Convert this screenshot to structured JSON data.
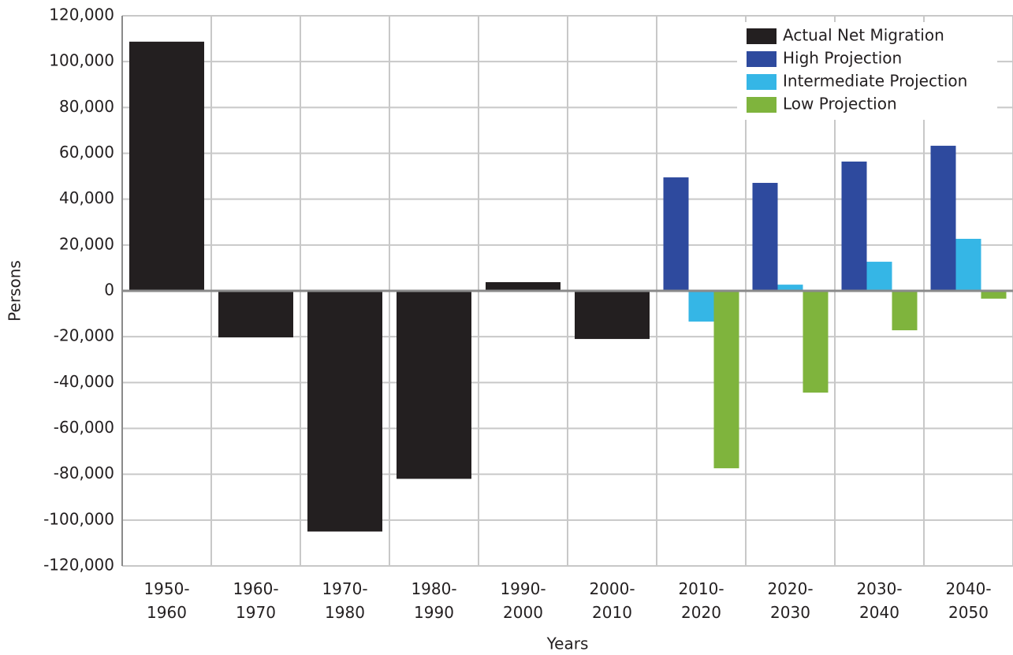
{
  "chart_data": {
    "type": "bar",
    "x_label": "Years",
    "y_label": "Persons",
    "categories": [
      "1950-1960",
      "1960-1970",
      "1970-1980",
      "1980-1990",
      "1990-2000",
      "2000-2010",
      "2010-2020",
      "2020-2030",
      "2030-2040",
      "2040-2050"
    ],
    "series": [
      {
        "name": "Actual Net Migration",
        "color": "#231f20",
        "values": [
          108700,
          -20300,
          -105000,
          -82000,
          3800,
          -21000,
          null,
          null,
          null,
          null
        ]
      },
      {
        "name": "High Projection",
        "color": "#2e4a9e",
        "values": [
          null,
          null,
          null,
          null,
          null,
          null,
          49500,
          47100,
          56400,
          63300
        ]
      },
      {
        "name": "Intermediate Projection",
        "color": "#35b6e6",
        "values": [
          null,
          null,
          null,
          null,
          null,
          null,
          -13400,
          2700,
          12700,
          22700
        ]
      },
      {
        "name": "Low Projection",
        "color": "#7fb43d",
        "values": [
          null,
          null,
          null,
          null,
          null,
          null,
          -77400,
          -44400,
          -17200,
          -3400
        ]
      }
    ],
    "ylim": [
      -120000,
      120000
    ],
    "yticks": [
      {
        "value": -120000,
        "label": "-120,000"
      },
      {
        "value": -100000,
        "label": "-100,000"
      },
      {
        "value": -80000,
        "label": "-80,000"
      },
      {
        "value": -60000,
        "label": "-60,000"
      },
      {
        "value": -40000,
        "label": "-40,000"
      },
      {
        "value": -20000,
        "label": "-20,000"
      },
      0,
      {
        "value": 20000,
        "label": "20,000"
      },
      {
        "value": 40000,
        "label": "40,000"
      },
      {
        "value": 60000,
        "label": "60,000"
      },
      {
        "value": 80000,
        "label": "80,000"
      },
      {
        "value": 100000,
        "label": "100,000"
      },
      {
        "value": 120000,
        "label": "120,000"
      }
    ],
    "grid": true,
    "legend_position": "upper right"
  }
}
